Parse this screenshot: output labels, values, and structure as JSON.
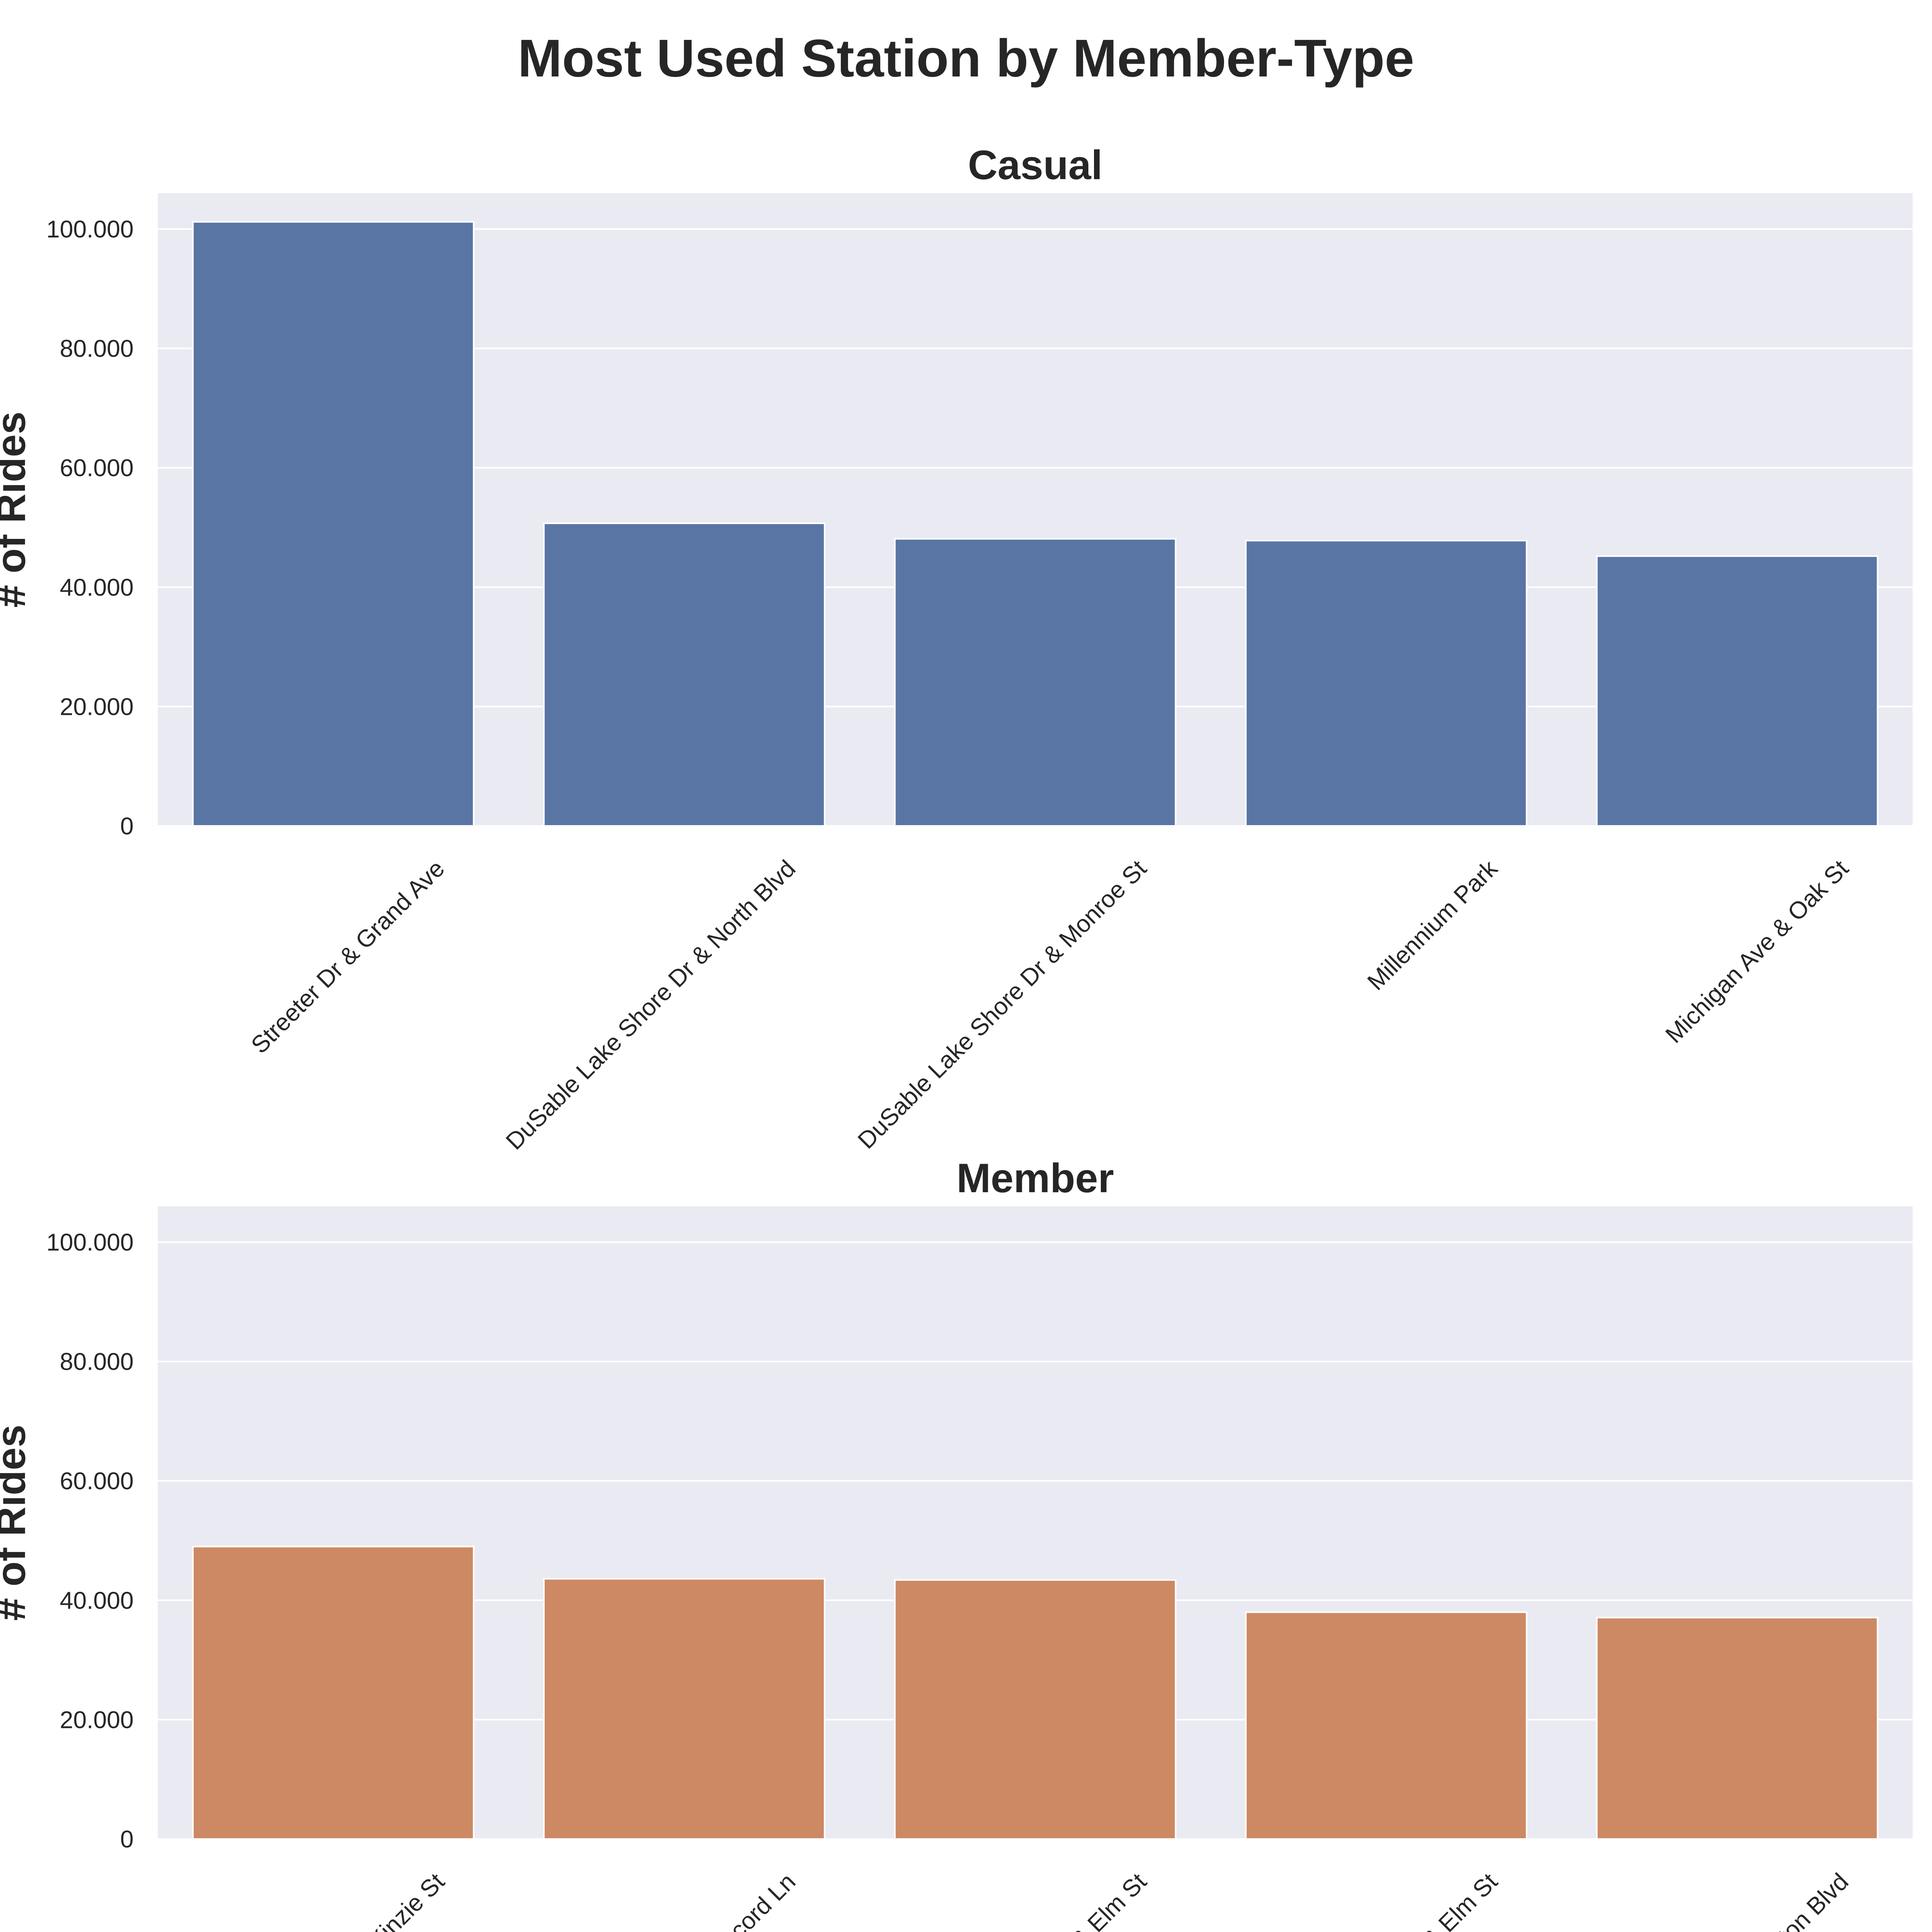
{
  "title": "Most Used Station by Member-Type",
  "colors": {
    "casual": "#5975a4",
    "member": "#cc8963",
    "plot_background": "#eaeaf2",
    "grid": "#ffffff",
    "text": "#262626"
  },
  "chart_data": [
    {
      "type": "bar",
      "title": "Casual",
      "ylabel": "# of Rides",
      "xlabel": "",
      "ylim": [
        0,
        106000
      ],
      "yticks": [
        0,
        20000,
        40000,
        60000,
        80000,
        100000
      ],
      "ytick_labels": [
        "0",
        "20.000",
        "40.000",
        "60.000",
        "80.000",
        "100.000"
      ],
      "grid": true,
      "categories": [
        "Streeter Dr & Grand Ave",
        "DuSable Lake Shore Dr & North Blvd",
        "DuSable Lake Shore Dr & Monroe St",
        "Millennium Park",
        "Michigan Ave & Oak St"
      ],
      "values": [
        101200,
        50700,
        48100,
        47800,
        45200
      ],
      "color": "#5975a4"
    },
    {
      "type": "bar",
      "title": "Member",
      "ylabel": "# of Rides",
      "xlabel": "",
      "ylim": [
        0,
        106000
      ],
      "yticks": [
        0,
        20000,
        40000,
        60000,
        80000,
        100000
      ],
      "ytick_labels": [
        "0",
        "20.000",
        "40.000",
        "60.000",
        "80.000",
        "100.000"
      ],
      "grid": true,
      "categories": [
        "Kinzie St",
        "cord Ln",
        "& Elm St",
        "& Elm St",
        "ton Blvd"
      ],
      "values": [
        49000,
        43600,
        43400,
        38000,
        37100
      ],
      "color": "#cc8963"
    }
  ]
}
